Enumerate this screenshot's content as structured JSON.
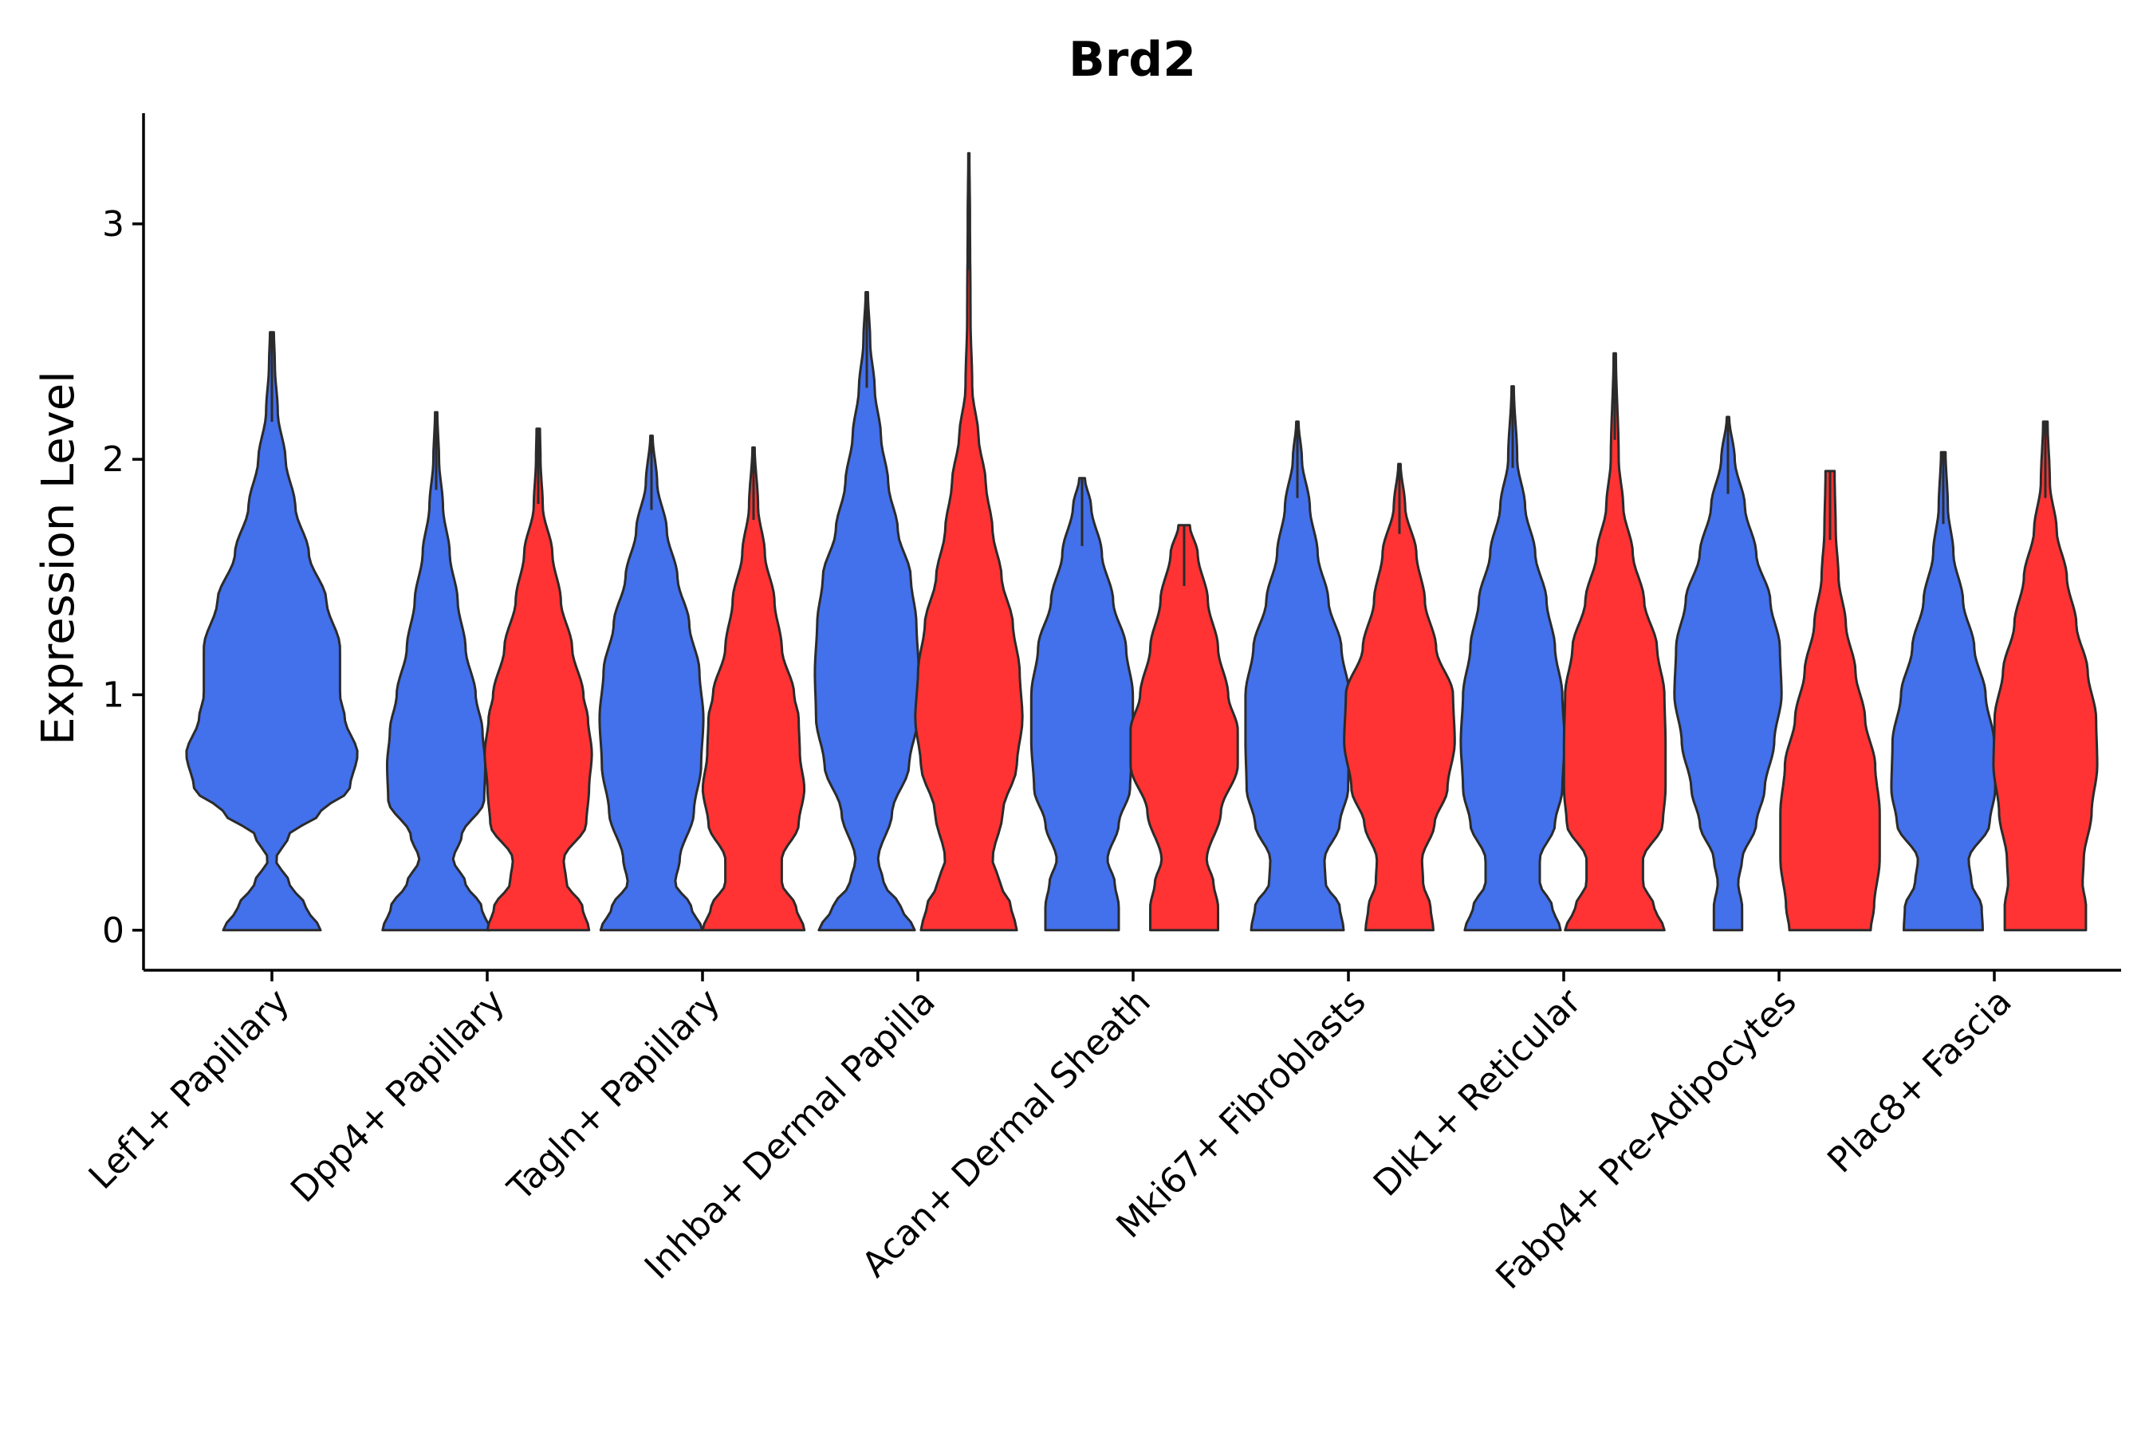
{
  "chart_data": {
    "type": "violin",
    "title": "Brd2",
    "xlabel": "",
    "ylabel": "Expression Level",
    "ylim": [
      -0.17,
      3.47
    ],
    "yticks": [
      0,
      1,
      2,
      3
    ],
    "categories": [
      "Lef1+ Papillary",
      "Dpp4+ Papillary",
      "Tagln+ Papillary",
      "Inhba+ Dermal Papilla",
      "Acan+ Dermal Sheath",
      "Mki67+ Fibroblasts",
      "Dlk1+ Reticular",
      "Fabp4+ Pre-Adipocytes",
      "Plac8+ Fascia"
    ],
    "series_colors": [
      "#4370EB",
      "#FF3333"
    ],
    "violins": [
      {
        "category_index": 0,
        "group": 0,
        "max": 2.54,
        "shape": [
          [
            0,
            0.5
          ],
          [
            0.1,
            0.35
          ],
          [
            0.2,
            0.18
          ],
          [
            0.3,
            0.04
          ],
          [
            0.4,
            0.17
          ],
          [
            0.5,
            0.5
          ],
          [
            0.6,
            0.8
          ],
          [
            0.75,
            0.88
          ],
          [
            0.9,
            0.75
          ],
          [
            1.0,
            0.7
          ],
          [
            1.2,
            0.7
          ],
          [
            1.4,
            0.56
          ],
          [
            1.6,
            0.38
          ],
          [
            1.8,
            0.24
          ],
          [
            2.0,
            0.14
          ],
          [
            2.2,
            0.06
          ],
          [
            2.4,
            0.03
          ],
          [
            2.54,
            0.02
          ]
        ]
      },
      {
        "category_index": 1,
        "group": 0,
        "max": 2.2,
        "shape": [
          [
            0,
            0.95
          ],
          [
            0.1,
            0.8
          ],
          [
            0.2,
            0.52
          ],
          [
            0.3,
            0.3
          ],
          [
            0.4,
            0.45
          ],
          [
            0.55,
            0.85
          ],
          [
            0.7,
            0.87
          ],
          [
            0.85,
            0.82
          ],
          [
            1.0,
            0.7
          ],
          [
            1.2,
            0.52
          ],
          [
            1.4,
            0.38
          ],
          [
            1.6,
            0.24
          ],
          [
            1.8,
            0.12
          ],
          [
            2.0,
            0.05
          ],
          [
            2.2,
            0.02
          ]
        ]
      },
      {
        "category_index": 1,
        "group": 1,
        "max": 2.13,
        "shape": [
          [
            0,
            0.9
          ],
          [
            0.1,
            0.78
          ],
          [
            0.2,
            0.5
          ],
          [
            0.3,
            0.45
          ],
          [
            0.45,
            0.85
          ],
          [
            0.6,
            0.9
          ],
          [
            0.75,
            0.95
          ],
          [
            0.9,
            0.88
          ],
          [
            1.0,
            0.8
          ],
          [
            1.2,
            0.6
          ],
          [
            1.4,
            0.4
          ],
          [
            1.6,
            0.25
          ],
          [
            1.8,
            0.08
          ],
          [
            2.0,
            0.04
          ],
          [
            2.13,
            0.03
          ]
        ]
      },
      {
        "category_index": 2,
        "group": 0,
        "max": 2.1,
        "shape": [
          [
            0,
            0.9
          ],
          [
            0.1,
            0.7
          ],
          [
            0.2,
            0.42
          ],
          [
            0.3,
            0.5
          ],
          [
            0.5,
            0.75
          ],
          [
            0.7,
            0.88
          ],
          [
            0.9,
            0.92
          ],
          [
            1.1,
            0.85
          ],
          [
            1.3,
            0.67
          ],
          [
            1.5,
            0.46
          ],
          [
            1.7,
            0.27
          ],
          [
            1.9,
            0.1
          ],
          [
            2.1,
            0.02
          ]
        ]
      },
      {
        "category_index": 2,
        "group": 1,
        "max": 2.05,
        "shape": [
          [
            0,
            0.9
          ],
          [
            0.1,
            0.75
          ],
          [
            0.2,
            0.5
          ],
          [
            0.3,
            0.5
          ],
          [
            0.45,
            0.8
          ],
          [
            0.6,
            0.9
          ],
          [
            0.75,
            0.82
          ],
          [
            0.9,
            0.8
          ],
          [
            1.0,
            0.72
          ],
          [
            1.2,
            0.5
          ],
          [
            1.4,
            0.37
          ],
          [
            1.6,
            0.2
          ],
          [
            1.8,
            0.08
          ],
          [
            2.05,
            0.02
          ]
        ]
      },
      {
        "category_index": 3,
        "group": 0,
        "max": 2.71,
        "shape": [
          [
            0,
            0.85
          ],
          [
            0.1,
            0.6
          ],
          [
            0.2,
            0.3
          ],
          [
            0.3,
            0.2
          ],
          [
            0.5,
            0.45
          ],
          [
            0.7,
            0.75
          ],
          [
            0.9,
            0.9
          ],
          [
            1.1,
            0.92
          ],
          [
            1.3,
            0.88
          ],
          [
            1.5,
            0.78
          ],
          [
            1.7,
            0.55
          ],
          [
            1.9,
            0.38
          ],
          [
            2.1,
            0.25
          ],
          [
            2.3,
            0.14
          ],
          [
            2.5,
            0.06
          ],
          [
            2.71,
            0.02
          ]
        ]
      },
      {
        "category_index": 3,
        "group": 1,
        "max": 3.3,
        "shape": [
          [
            0,
            0.85
          ],
          [
            0.1,
            0.75
          ],
          [
            0.2,
            0.55
          ],
          [
            0.3,
            0.42
          ],
          [
            0.5,
            0.6
          ],
          [
            0.7,
            0.85
          ],
          [
            0.9,
            0.95
          ],
          [
            1.1,
            0.9
          ],
          [
            1.3,
            0.78
          ],
          [
            1.5,
            0.58
          ],
          [
            1.7,
            0.42
          ],
          [
            1.9,
            0.3
          ],
          [
            2.1,
            0.17
          ],
          [
            2.3,
            0.06
          ],
          [
            2.6,
            0.03
          ],
          [
            3.0,
            0.02
          ],
          [
            3.3,
            0.01
          ]
        ]
      },
      {
        "category_index": 4,
        "group": 0,
        "max": 1.92,
        "shape": [
          [
            0,
            0.65
          ],
          [
            0.1,
            0.65
          ],
          [
            0.2,
            0.58
          ],
          [
            0.3,
            0.45
          ],
          [
            0.45,
            0.65
          ],
          [
            0.6,
            0.85
          ],
          [
            0.8,
            0.9
          ],
          [
            1.0,
            0.9
          ],
          [
            1.2,
            0.78
          ],
          [
            1.4,
            0.55
          ],
          [
            1.6,
            0.35
          ],
          [
            1.8,
            0.16
          ],
          [
            1.92,
            0.05
          ]
        ]
      },
      {
        "category_index": 4,
        "group": 1,
        "max": 1.72,
        "shape": [
          [
            0,
            0.6
          ],
          [
            0.1,
            0.6
          ],
          [
            0.2,
            0.52
          ],
          [
            0.3,
            0.4
          ],
          [
            0.5,
            0.65
          ],
          [
            0.7,
            0.95
          ],
          [
            0.85,
            0.95
          ],
          [
            1.0,
            0.78
          ],
          [
            1.2,
            0.6
          ],
          [
            1.4,
            0.42
          ],
          [
            1.6,
            0.24
          ],
          [
            1.72,
            0.1
          ]
        ]
      },
      {
        "category_index": 5,
        "group": 0,
        "max": 2.16,
        "shape": [
          [
            0,
            0.82
          ],
          [
            0.1,
            0.75
          ],
          [
            0.2,
            0.5
          ],
          [
            0.3,
            0.48
          ],
          [
            0.45,
            0.75
          ],
          [
            0.6,
            0.9
          ],
          [
            0.8,
            0.92
          ],
          [
            1.0,
            0.92
          ],
          [
            1.2,
            0.78
          ],
          [
            1.4,
            0.55
          ],
          [
            1.6,
            0.36
          ],
          [
            1.8,
            0.22
          ],
          [
            2.0,
            0.08
          ],
          [
            2.16,
            0.02
          ]
        ]
      },
      {
        "category_index": 5,
        "group": 1,
        "max": 1.98,
        "shape": [
          [
            0,
            0.6
          ],
          [
            0.1,
            0.55
          ],
          [
            0.2,
            0.42
          ],
          [
            0.3,
            0.4
          ],
          [
            0.45,
            0.62
          ],
          [
            0.6,
            0.85
          ],
          [
            0.8,
            0.98
          ],
          [
            1.0,
            0.95
          ],
          [
            1.2,
            0.65
          ],
          [
            1.4,
            0.45
          ],
          [
            1.6,
            0.3
          ],
          [
            1.8,
            0.1
          ],
          [
            1.98,
            0.02
          ]
        ]
      },
      {
        "category_index": 6,
        "group": 0,
        "max": 2.31,
        "shape": [
          [
            0,
            0.85
          ],
          [
            0.1,
            0.7
          ],
          [
            0.2,
            0.48
          ],
          [
            0.3,
            0.48
          ],
          [
            0.45,
            0.75
          ],
          [
            0.6,
            0.88
          ],
          [
            0.8,
            0.92
          ],
          [
            1.0,
            0.88
          ],
          [
            1.2,
            0.75
          ],
          [
            1.4,
            0.6
          ],
          [
            1.6,
            0.4
          ],
          [
            1.8,
            0.22
          ],
          [
            2.0,
            0.08
          ],
          [
            2.31,
            0.02
          ]
        ]
      },
      {
        "category_index": 6,
        "group": 1,
        "max": 2.45,
        "shape": [
          [
            0,
            0.88
          ],
          [
            0.1,
            0.7
          ],
          [
            0.2,
            0.5
          ],
          [
            0.3,
            0.5
          ],
          [
            0.45,
            0.85
          ],
          [
            0.6,
            0.9
          ],
          [
            0.8,
            0.9
          ],
          [
            1.0,
            0.88
          ],
          [
            1.2,
            0.75
          ],
          [
            1.4,
            0.52
          ],
          [
            1.6,
            0.32
          ],
          [
            1.8,
            0.15
          ],
          [
            2.0,
            0.07
          ],
          [
            2.45,
            0.02
          ]
        ]
      },
      {
        "category_index": 7,
        "group": 0,
        "max": 2.18,
        "shape": [
          [
            0,
            0.25
          ],
          [
            0.1,
            0.25
          ],
          [
            0.2,
            0.18
          ],
          [
            0.3,
            0.25
          ],
          [
            0.45,
            0.5
          ],
          [
            0.6,
            0.65
          ],
          [
            0.8,
            0.82
          ],
          [
            1.0,
            0.95
          ],
          [
            1.2,
            0.92
          ],
          [
            1.4,
            0.75
          ],
          [
            1.6,
            0.5
          ],
          [
            1.8,
            0.3
          ],
          [
            2.0,
            0.12
          ],
          [
            2.18,
            0.02
          ]
        ]
      },
      {
        "category_index": 7,
        "group": 1,
        "max": 1.95,
        "shape": [
          [
            0,
            0.72
          ],
          [
            0.1,
            0.78
          ],
          [
            0.3,
            0.88
          ],
          [
            0.5,
            0.88
          ],
          [
            0.7,
            0.8
          ],
          [
            0.9,
            0.62
          ],
          [
            1.1,
            0.45
          ],
          [
            1.3,
            0.28
          ],
          [
            1.5,
            0.15
          ],
          [
            1.7,
            0.1
          ],
          [
            1.95,
            0.08
          ]
        ]
      },
      {
        "category_index": 8,
        "group": 0,
        "max": 2.03,
        "shape": [
          [
            0,
            0.7
          ],
          [
            0.1,
            0.68
          ],
          [
            0.2,
            0.5
          ],
          [
            0.3,
            0.45
          ],
          [
            0.45,
            0.82
          ],
          [
            0.6,
            0.92
          ],
          [
            0.8,
            0.9
          ],
          [
            1.0,
            0.75
          ],
          [
            1.2,
            0.55
          ],
          [
            1.4,
            0.35
          ],
          [
            1.6,
            0.18
          ],
          [
            1.8,
            0.08
          ],
          [
            2.03,
            0.04
          ]
        ]
      },
      {
        "category_index": 8,
        "group": 1,
        "max": 2.16,
        "shape": [
          [
            0,
            0.72
          ],
          [
            0.1,
            0.72
          ],
          [
            0.2,
            0.66
          ],
          [
            0.3,
            0.68
          ],
          [
            0.5,
            0.82
          ],
          [
            0.7,
            0.92
          ],
          [
            0.9,
            0.9
          ],
          [
            1.1,
            0.75
          ],
          [
            1.3,
            0.55
          ],
          [
            1.5,
            0.38
          ],
          [
            1.7,
            0.2
          ],
          [
            1.9,
            0.08
          ],
          [
            2.16,
            0.04
          ]
        ]
      }
    ]
  }
}
